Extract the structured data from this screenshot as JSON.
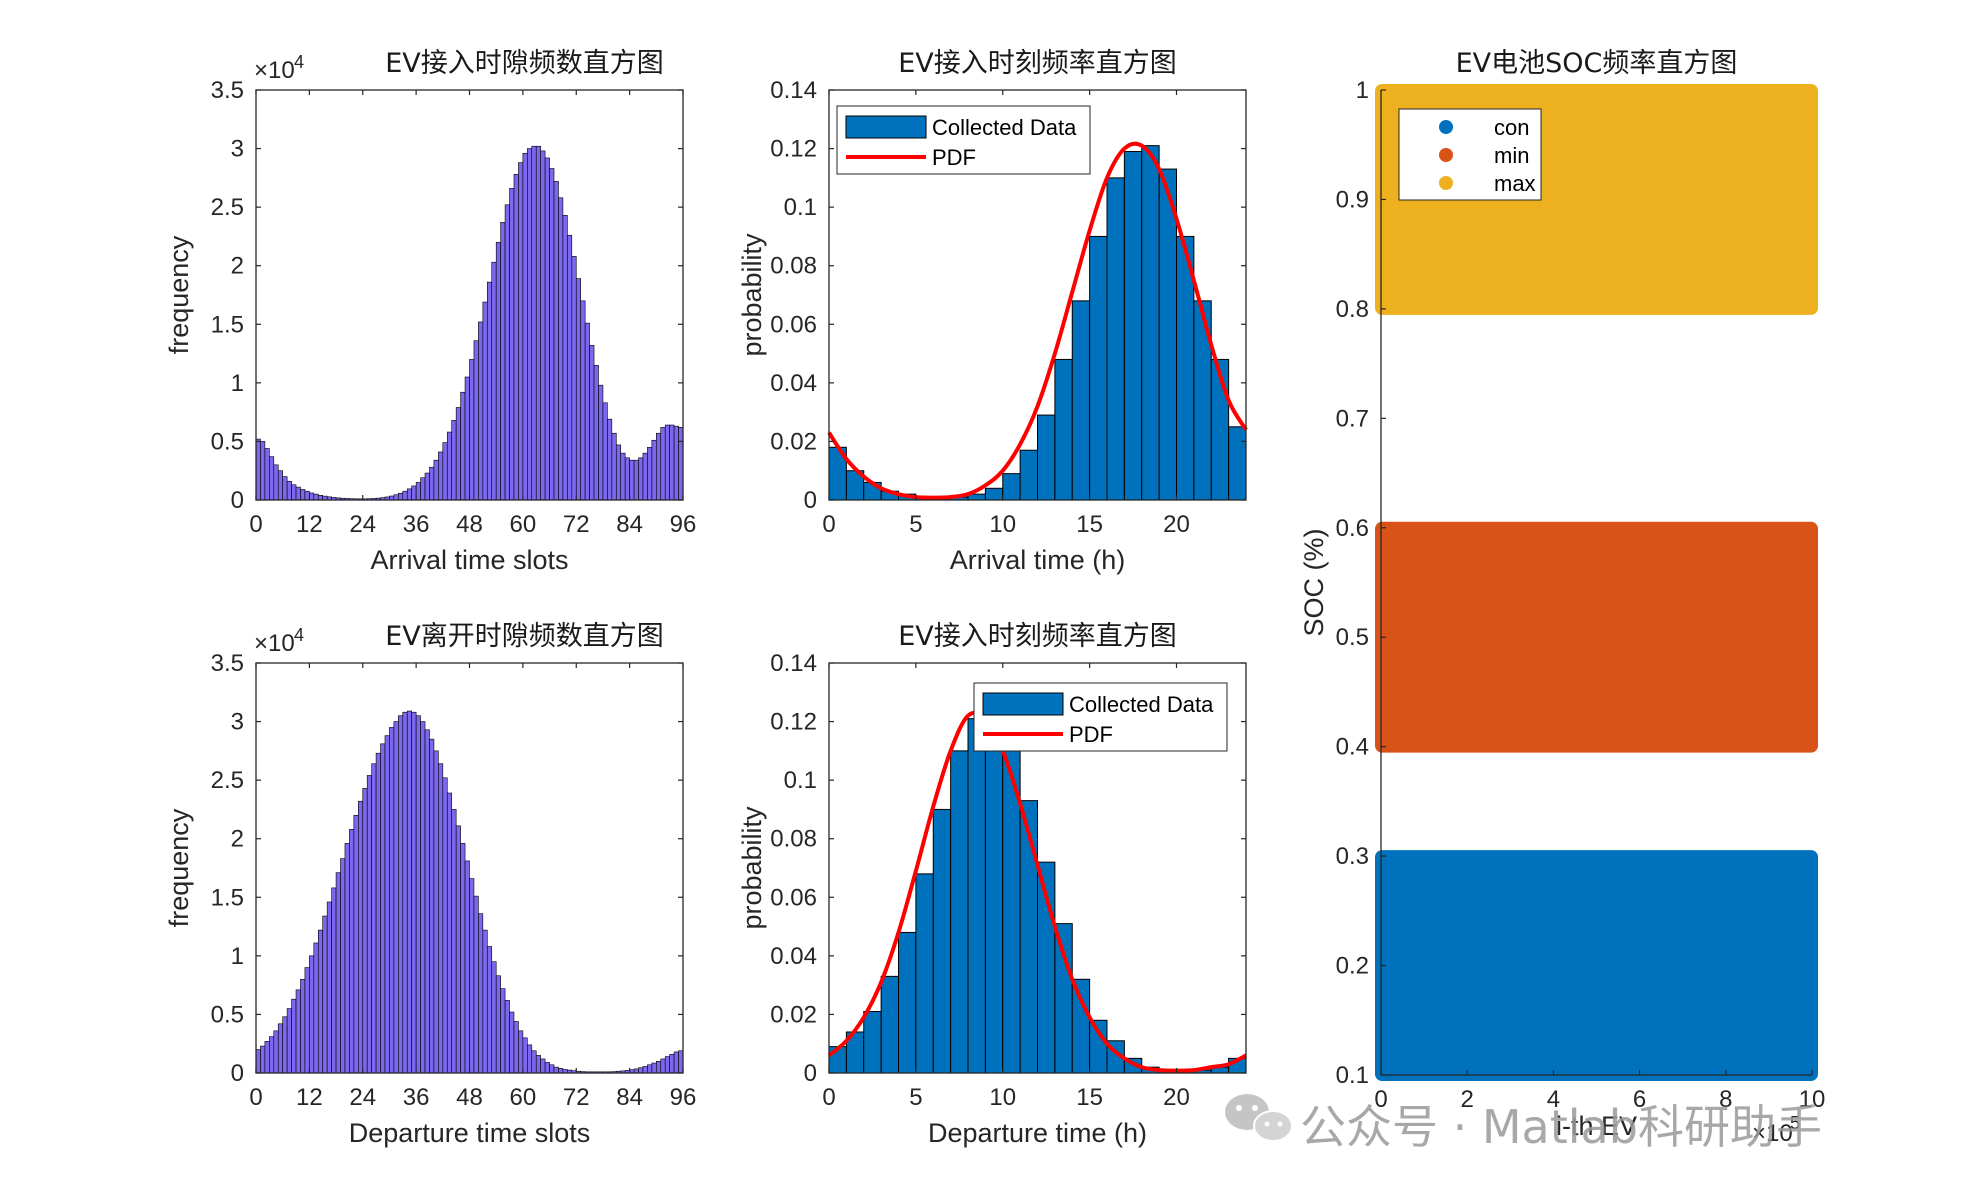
{
  "watermark": "公众号 · Matlab科研助手",
  "chart_data": [
    {
      "id": "p1",
      "type": "bar",
      "title": "EV接入时隙频数直方图",
      "exponent_label": "×10",
      "exponent": "4",
      "xlabel": "Arrival time slots",
      "ylabel": "frequency",
      "xlim": [
        0,
        96
      ],
      "ylim": [
        0,
        3.5
      ],
      "xticks": [
        0,
        12,
        24,
        36,
        48,
        60,
        72,
        84,
        96
      ],
      "yticks": [
        0,
        0.5,
        1,
        1.5,
        2,
        2.5,
        3,
        3.5
      ],
      "yticklabels": [
        "0",
        "0.5",
        "1",
        "1.5",
        "2",
        "2.5",
        "3",
        "3.5"
      ],
      "bar_color": "#7b68ee",
      "bin_width": 1,
      "values": [
        0.52,
        0.5,
        0.44,
        0.37,
        0.3,
        0.25,
        0.2,
        0.16,
        0.13,
        0.11,
        0.09,
        0.075,
        0.06,
        0.05,
        0.04,
        0.033,
        0.027,
        0.022,
        0.018,
        0.015,
        0.013,
        0.011,
        0.01,
        0.01,
        0.01,
        0.011,
        0.013,
        0.016,
        0.02,
        0.026,
        0.034,
        0.045,
        0.058,
        0.075,
        0.095,
        0.12,
        0.15,
        0.19,
        0.23,
        0.28,
        0.34,
        0.41,
        0.49,
        0.58,
        0.68,
        0.79,
        0.92,
        1.05,
        1.2,
        1.36,
        1.52,
        1.69,
        1.86,
        2.03,
        2.2,
        2.37,
        2.52,
        2.66,
        2.78,
        2.88,
        2.96,
        3.0,
        3.02,
        3.02,
        2.98,
        2.92,
        2.83,
        2.72,
        2.58,
        2.43,
        2.26,
        2.08,
        1.89,
        1.7,
        1.51,
        1.32,
        1.15,
        0.98,
        0.83,
        0.69,
        0.57,
        0.47,
        0.4,
        0.36,
        0.34,
        0.34,
        0.36,
        0.4,
        0.45,
        0.51,
        0.57,
        0.62,
        0.64,
        0.64,
        0.63,
        0.62
      ]
    },
    {
      "id": "p2",
      "type": "bar",
      "title": "EV接入时刻频率直方图",
      "xlabel": "Arrival time (h)",
      "ylabel": "probability",
      "xlim": [
        0,
        24
      ],
      "ylim": [
        0,
        0.14
      ],
      "xticks": [
        0,
        5,
        10,
        15,
        20
      ],
      "yticks": [
        0,
        0.02,
        0.04,
        0.06,
        0.08,
        0.1,
        0.12,
        0.14
      ],
      "yticklabels": [
        "0",
        "0.02",
        "0.04",
        "0.06",
        "0.08",
        "0.1",
        "0.12",
        "0.14"
      ],
      "bar_color": "#0072bd",
      "pdf_color": "#ff0000",
      "legend": [
        "Collected Data",
        "PDF"
      ],
      "bin_width": 1,
      "values": [
        0.018,
        0.01,
        0.006,
        0.003,
        0.002,
        0.001,
        0.001,
        0.001,
        0.002,
        0.004,
        0.009,
        0.017,
        0.029,
        0.048,
        0.068,
        0.09,
        0.11,
        0.119,
        0.121,
        0.113,
        0.09,
        0.068,
        0.048,
        0.025
      ],
      "pdf_x": [
        0,
        1,
        2,
        3,
        4,
        5,
        6,
        7,
        8,
        9,
        10,
        11,
        12,
        13,
        14,
        15,
        16,
        17,
        18,
        19,
        20,
        21,
        22,
        23,
        24
      ],
      "pdf_y": [
        0.023,
        0.014,
        0.008,
        0.004,
        0.002,
        0.001,
        0.0008,
        0.001,
        0.002,
        0.005,
        0.01,
        0.019,
        0.032,
        0.05,
        0.071,
        0.092,
        0.11,
        0.12,
        0.121,
        0.113,
        0.096,
        0.075,
        0.053,
        0.034,
        0.024
      ]
    },
    {
      "id": "p3",
      "type": "scatter",
      "title": "EV电池SOC频率直方图",
      "xlabel": "i-th EV",
      "ylabel": "SOC (%)",
      "exponent_label": "×10",
      "exponent": "5",
      "xlim": [
        0,
        10
      ],
      "ylim": [
        0.1,
        1
      ],
      "xticks": [
        0,
        2,
        4,
        6,
        8,
        10
      ],
      "yticks": [
        0.1,
        0.2,
        0.3,
        0.4,
        0.5,
        0.6,
        0.7,
        0.8,
        0.9,
        1
      ],
      "yticklabels": [
        "0.1",
        "0.2",
        "0.3",
        "0.4",
        "0.5",
        "0.6",
        "0.7",
        "0.8",
        "0.9",
        "1"
      ],
      "legend": [
        "con",
        "min",
        "max"
      ],
      "series": [
        {
          "name": "con",
          "color": "#0072bd",
          "x_range": [
            0,
            10
          ],
          "y_range": [
            0.1,
            0.3
          ]
        },
        {
          "name": "min",
          "color": "#d95319",
          "x_range": [
            0,
            10
          ],
          "y_range": [
            0.4,
            0.6
          ]
        },
        {
          "name": "max",
          "color": "#edb120",
          "x_range": [
            0,
            10
          ],
          "y_range": [
            0.8,
            1.0
          ]
        }
      ]
    },
    {
      "id": "p4",
      "type": "bar",
      "title": "EV离开时隙频数直方图",
      "exponent_label": "×10",
      "exponent": "4",
      "xlabel": "Departure time slots",
      "ylabel": "frequency",
      "xlim": [
        0,
        96
      ],
      "ylim": [
        0,
        3.5
      ],
      "xticks": [
        0,
        12,
        24,
        36,
        48,
        60,
        72,
        84,
        96
      ],
      "yticks": [
        0,
        0.5,
        1,
        1.5,
        2,
        2.5,
        3,
        3.5
      ],
      "yticklabels": [
        "0",
        "0.5",
        "1",
        "1.5",
        "2",
        "2.5",
        "3",
        "3.5"
      ],
      "bar_color": "#7b68ee",
      "bin_width": 1,
      "values": [
        0.2,
        0.23,
        0.27,
        0.31,
        0.36,
        0.42,
        0.48,
        0.55,
        0.63,
        0.71,
        0.8,
        0.9,
        1.0,
        1.11,
        1.22,
        1.34,
        1.46,
        1.58,
        1.71,
        1.83,
        1.96,
        2.08,
        2.2,
        2.32,
        2.43,
        2.54,
        2.64,
        2.73,
        2.81,
        2.88,
        2.95,
        3.0,
        3.05,
        3.08,
        3.09,
        3.08,
        3.05,
        3.0,
        2.93,
        2.85,
        2.75,
        2.64,
        2.52,
        2.39,
        2.25,
        2.11,
        1.96,
        1.81,
        1.66,
        1.51,
        1.36,
        1.22,
        1.08,
        0.95,
        0.83,
        0.72,
        0.62,
        0.52,
        0.44,
        0.36,
        0.3,
        0.24,
        0.19,
        0.15,
        0.12,
        0.09,
        0.07,
        0.05,
        0.04,
        0.03,
        0.025,
        0.02,
        0.015,
        0.012,
        0.01,
        0.01,
        0.01,
        0.01,
        0.01,
        0.01,
        0.012,
        0.015,
        0.018,
        0.022,
        0.028,
        0.035,
        0.045,
        0.056,
        0.07,
        0.085,
        0.1,
        0.12,
        0.14,
        0.16,
        0.18,
        0.19
      ]
    },
    {
      "id": "p5",
      "type": "bar",
      "title": "EV接入时刻频率直方图",
      "xlabel": "Departure time (h)",
      "ylabel": "probability",
      "xlim": [
        0,
        24
      ],
      "ylim": [
        0,
        0.14
      ],
      "xticks": [
        0,
        5,
        10,
        15,
        20
      ],
      "yticks": [
        0,
        0.02,
        0.04,
        0.06,
        0.08,
        0.1,
        0.12,
        0.14
      ],
      "yticklabels": [
        "0",
        "0.02",
        "0.04",
        "0.06",
        "0.08",
        "0.1",
        "0.12",
        "0.14"
      ],
      "bar_color": "#0072bd",
      "pdf_color": "#ff0000",
      "legend": [
        "Collected Data",
        "PDF"
      ],
      "bin_width": 1,
      "values": [
        0.009,
        0.014,
        0.021,
        0.033,
        0.048,
        0.068,
        0.09,
        0.11,
        0.121,
        0.12,
        0.111,
        0.093,
        0.072,
        0.051,
        0.032,
        0.018,
        0.011,
        0.005,
        0.002,
        0.001,
        0.001,
        0.001,
        0.002,
        0.005
      ],
      "pdf_x": [
        0,
        1,
        2,
        3,
        4,
        5,
        6,
        7,
        8,
        9,
        10,
        11,
        12,
        13,
        14,
        15,
        16,
        17,
        18,
        19,
        20,
        21,
        22,
        23,
        24
      ],
      "pdf_y": [
        0.006,
        0.011,
        0.019,
        0.031,
        0.048,
        0.069,
        0.091,
        0.11,
        0.122,
        0.121,
        0.11,
        0.092,
        0.071,
        0.05,
        0.032,
        0.019,
        0.01,
        0.005,
        0.002,
        0.001,
        0.0008,
        0.001,
        0.002,
        0.003,
        0.006
      ]
    }
  ]
}
